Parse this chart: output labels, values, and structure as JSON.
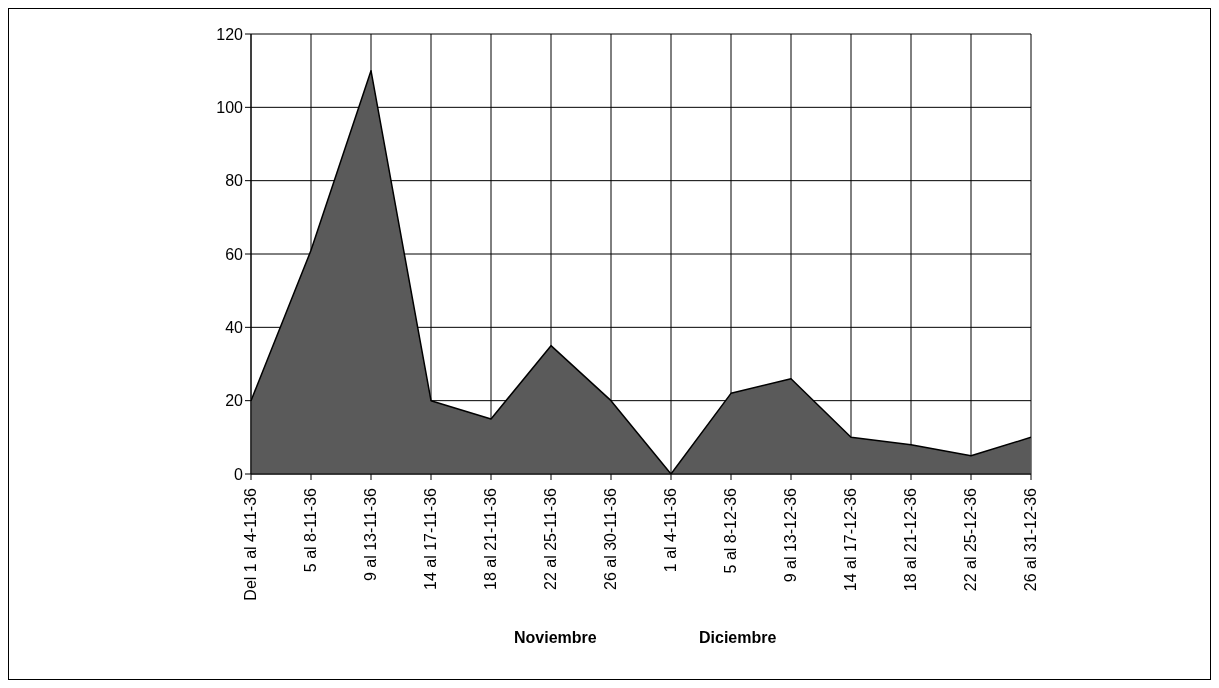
{
  "chart_data": {
    "type": "area",
    "categories": [
      "Del 1 al 4-11-36",
      "5 al 8-11-36",
      "9 al 13-11-36",
      "14 al 17-11-36",
      "18 al 21-11-36",
      "22 al 25-11-36",
      "26 al 30-11-36",
      "1 al 4-11-36",
      "5 al 8-12-36",
      "9 al 13-12-36",
      "14 al 17-12-36",
      "18 al 21-12-36",
      "22 al 25-12-36",
      "26 al 31-12-36"
    ],
    "values": [
      20,
      61,
      110,
      20,
      15,
      35,
      20,
      0,
      22,
      26,
      10,
      8,
      5,
      10
    ],
    "color": "#5a5a5a",
    "ylim": [
      0,
      120
    ],
    "yticks": [
      0,
      20,
      40,
      60,
      80,
      100,
      120
    ],
    "grid": true,
    "annotations": [
      "Noviembre",
      "Diciembre"
    ]
  }
}
